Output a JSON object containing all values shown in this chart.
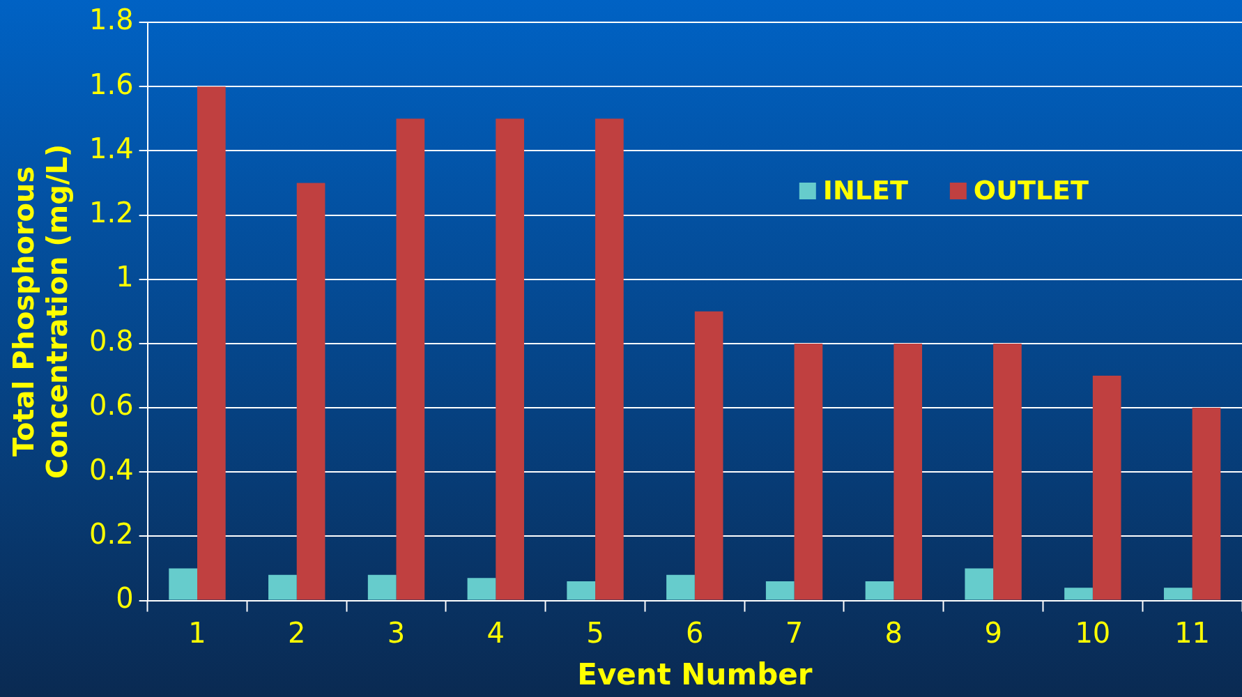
{
  "chart_data": {
    "type": "bar",
    "xlabel": "Event Number",
    "ylabel": "Total Phosphorous Concentration (mg/L)",
    "categories": [
      "1",
      "2",
      "3",
      "4",
      "5",
      "6",
      "7",
      "8",
      "9",
      "10",
      "11"
    ],
    "series": [
      {
        "name": "INLET",
        "color": "#66cccc",
        "values": [
          0.1,
          0.08,
          0.08,
          0.07,
          0.06,
          0.08,
          0.06,
          0.06,
          0.1,
          0.04,
          0.04
        ]
      },
      {
        "name": "OUTLET",
        "color": "#c04040",
        "values": [
          1.6,
          1.3,
          1.5,
          1.5,
          1.5,
          0.9,
          0.8,
          0.8,
          0.8,
          0.7,
          0.6
        ]
      }
    ],
    "ylim": [
      0,
      1.8
    ],
    "yticks": [
      0,
      0.2,
      0.4,
      0.6,
      0.8,
      1,
      1.2,
      1.4,
      1.6,
      1.8
    ],
    "grid": "y",
    "legend": "top right"
  }
}
